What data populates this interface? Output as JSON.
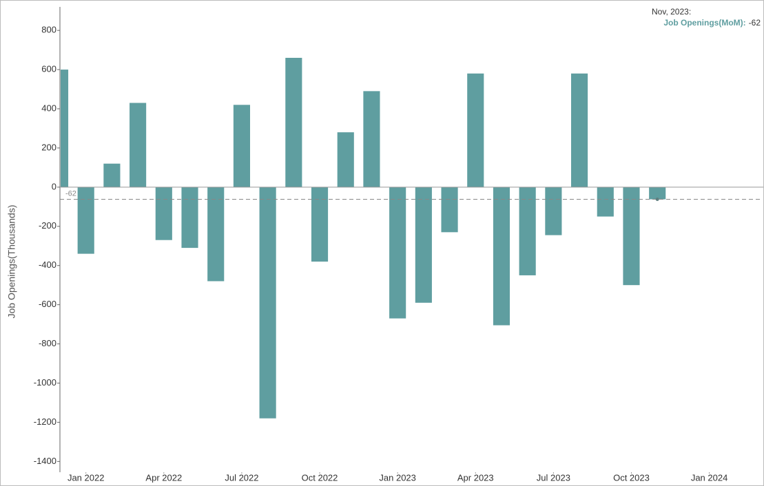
{
  "chart_data": {
    "type": "bar",
    "y_label": "Job Openings(Thousands)",
    "x": [
      "2021-12",
      "2022-01",
      "2022-02",
      "2022-03",
      "2022-04",
      "2022-05",
      "2022-06",
      "2022-07",
      "2022-08",
      "2022-09",
      "2022-10",
      "2022-11",
      "2022-12",
      "2023-01",
      "2023-02",
      "2023-03",
      "2023-04",
      "2023-05",
      "2023-06",
      "2023-07",
      "2023-08",
      "2023-09",
      "2023-10",
      "2023-11"
    ],
    "values": [
      600,
      -340,
      120,
      430,
      -270,
      -310,
      -480,
      420,
      -1180,
      660,
      -380,
      280,
      490,
      -670,
      -590,
      -230,
      580,
      -705,
      -450,
      -245,
      580,
      -150,
      -500,
      -62
    ],
    "color": "#5f9ea0",
    "xlim": [
      "2021-12",
      "2024-03"
    ],
    "xticks": [
      {
        "value": "2022-01",
        "label": "Jan 2022"
      },
      {
        "value": "2022-04",
        "label": "Apr 2022"
      },
      {
        "value": "2022-07",
        "label": "Jul 2022"
      },
      {
        "value": "2022-10",
        "label": "Oct 2022"
      },
      {
        "value": "2023-01",
        "label": "Jan 2023"
      },
      {
        "value": "2023-04",
        "label": "Apr 2023"
      },
      {
        "value": "2023-07",
        "label": "Jul 2023"
      },
      {
        "value": "2023-10",
        "label": "Oct 2023"
      },
      {
        "value": "2024-01",
        "label": "Jan 2024"
      }
    ],
    "ylim": [
      -1455,
      920
    ],
    "yticks": [
      800,
      600,
      400,
      200,
      0,
      -200,
      -400,
      -600,
      -800,
      -1000,
      -1200,
      -1400
    ],
    "tooltip": {
      "index": 23,
      "date": "Nov, 2023:",
      "label": "Job Openings(MoM):"
    }
  }
}
